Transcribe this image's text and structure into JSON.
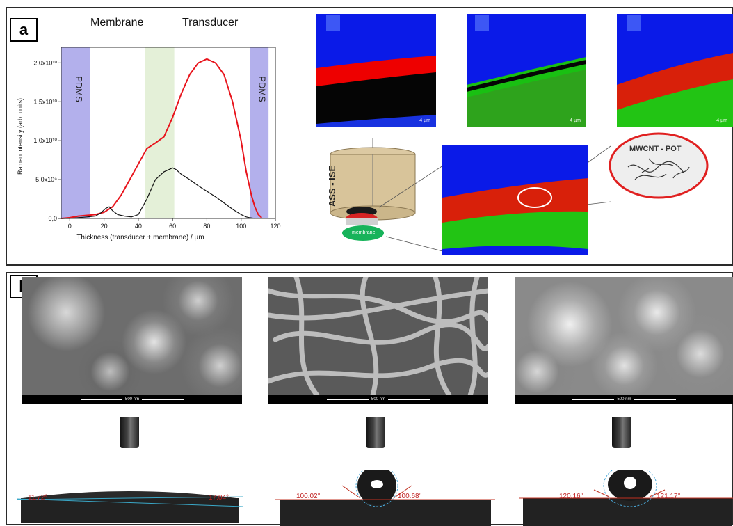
{
  "panel_a": {
    "label": "a",
    "header_membrane": "Membrane",
    "header_transducer": "Transducer",
    "chart_data": {
      "type": "line",
      "xlabel": "Thickness (transducer + membrane) / µm",
      "ylabel": "Raman intensity (arb. units)",
      "xlim": [
        -5,
        120
      ],
      "ylim": [
        0,
        22000000000.0
      ],
      "x_ticks": [
        "0",
        "20",
        "40",
        "60",
        "80",
        "100",
        "120"
      ],
      "y_ticks": [
        "0,0",
        "5,0x10⁹",
        "1,0x10¹⁰",
        "1,5x10¹⁰",
        "2,0x10¹⁰"
      ],
      "regions": [
        {
          "label": "PDMS",
          "x0": -5,
          "x1": 12,
          "color": "#b3b0ec"
        },
        {
          "label": "",
          "x0": 44,
          "x1": 61,
          "color": "#e4f0d8"
        },
        {
          "label": "PDMS",
          "x0": 105,
          "x1": 116,
          "color": "#b3b0ec"
        }
      ],
      "series": [
        {
          "color": "#e8141c",
          "x": [
            -5,
            0,
            5,
            10,
            15,
            20,
            25,
            30,
            35,
            40,
            45,
            50,
            55,
            60,
            65,
            70,
            75,
            80,
            85,
            90,
            95,
            100,
            103,
            106,
            108,
            110,
            112
          ],
          "y": [
            0,
            100000000.0,
            300000000.0,
            400000000.0,
            500000000.0,
            800000000.0,
            1500000000.0,
            3000000000.0,
            5000000000.0,
            7000000000.0,
            9000000000.0,
            9700000000.0,
            10500000000.0,
            13000000000.0,
            16000000000.0,
            18500000000.0,
            20000000000.0,
            20500000000.0,
            20000000000.0,
            18500000000.0,
            15000000000.0,
            10000000000.0,
            6000000000.0,
            3000000000.0,
            1500000000.0,
            500000000.0,
            100000000.0
          ]
        },
        {
          "color": "#111111",
          "x": [
            -5,
            0,
            5,
            10,
            15,
            18,
            21,
            23,
            25,
            28,
            32,
            36,
            40,
            45,
            50,
            55,
            60,
            62,
            65,
            70,
            75,
            80,
            85,
            90,
            95,
            100,
            103,
            105,
            108
          ],
          "y": [
            0,
            0,
            100000000.0,
            200000000.0,
            300000000.0,
            700000000.0,
            1300000000.0,
            1500000000.0,
            1000000000.0,
            500000000.0,
            300000000.0,
            200000000.0,
            500000000.0,
            2500000000.0,
            5000000000.0,
            6000000000.0,
            6500000000.0,
            6300000000.0,
            5700000000.0,
            5000000000.0,
            4200000000.0,
            3500000000.0,
            2800000000.0,
            2000000000.0,
            1200000000.0,
            500000000.0,
            200000000.0,
            100000000.0,
            0
          ]
        }
      ]
    },
    "scale_label": "4 µm",
    "electrode_label": "ASS - ISE",
    "membrane_label": "membrane",
    "inset_label": "MWCNT - POT"
  },
  "panel_b": {
    "label": "b",
    "sem_scale": "500 nm",
    "contact_angles": [
      {
        "left": "11.72°",
        "right": "17.04°"
      },
      {
        "left": "100.02°",
        "right": "100.68°"
      },
      {
        "left": "120.16°",
        "right": "121.17°"
      }
    ]
  }
}
